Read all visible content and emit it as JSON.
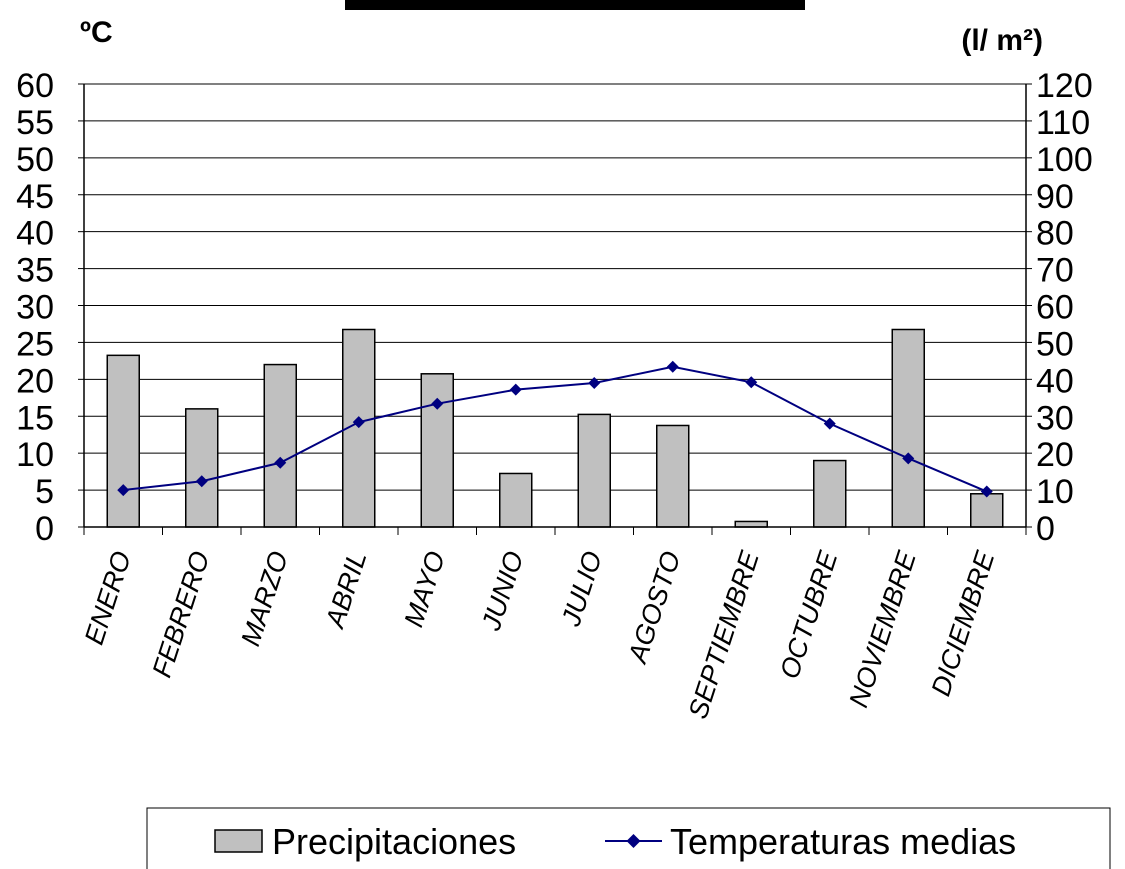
{
  "chart_data": {
    "type": "bar",
    "title": "",
    "left_axis": {
      "unit_label": "ºC",
      "ylim": [
        0,
        60
      ],
      "ticks": [
        "0",
        "5",
        "10",
        "15",
        "20",
        "25",
        "30",
        "35",
        "40",
        "45",
        "50",
        "55",
        "60"
      ]
    },
    "right_axis": {
      "unit_label": "(l/ m²)",
      "ylim": [
        0,
        120
      ],
      "ticks": [
        "0",
        "10",
        "20",
        "30",
        "40",
        "50",
        "60",
        "70",
        "80",
        "90",
        "100",
        "110",
        "120"
      ]
    },
    "categories": [
      "ENERO",
      "FEBRERO",
      "MARZO",
      "ABRIL",
      "MAYO",
      "JUNIO",
      "JULIO",
      "AGOSTO",
      "SEPTIEMBRE",
      "OCTUBRE",
      "NOVIEMBRE",
      "DICIEMBRE"
    ],
    "series": [
      {
        "name": "Precipitaciones",
        "type": "bar",
        "axis": "right",
        "color": "#c0c0c0",
        "values": [
          46.5,
          32,
          44,
          53.5,
          41.5,
          14.5,
          30.5,
          27.5,
          1.5,
          18,
          53.5,
          9
        ]
      },
      {
        "name": "Temperaturas medias",
        "type": "line",
        "axis": "left",
        "color": "#000080",
        "values": [
          5,
          6.2,
          8.7,
          14.2,
          16.7,
          18.6,
          19.5,
          21.7,
          19.6,
          14,
          9.3,
          4.8
        ]
      }
    ],
    "grid": true,
    "legend": "bottom-right"
  }
}
